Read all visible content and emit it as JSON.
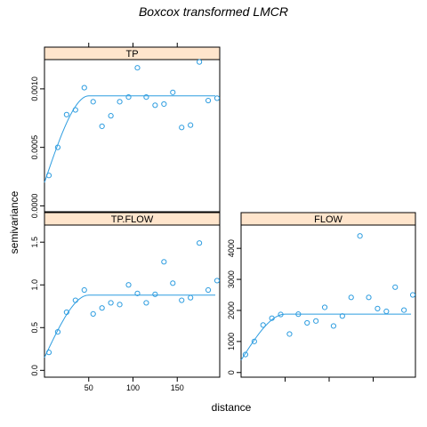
{
  "chart_data": {
    "type": "scatter",
    "title": "Boxcox transformed LMCR",
    "xlabel": "distance",
    "ylabel": "semivariance",
    "strip_color": "#ffe5cc",
    "point_color": "#2e9de0",
    "line_color": "#2e9de0",
    "panels": [
      {
        "name": "TP",
        "xlim": [
          0,
          198
        ],
        "ylim": [
          -5e-05,
          0.00125
        ],
        "y_ticks": [
          0.0,
          0.0005,
          0.001
        ],
        "y_tick_labels": [
          "0.0000",
          "0.0005",
          "0.0010"
        ],
        "y_ticks_side": "left",
        "x_ticks": [
          50,
          100,
          150
        ],
        "x_tick_labels": [],
        "x_ticks_side": "top",
        "points": {
          "x": [
            5,
            15,
            25,
            35,
            45,
            55,
            65,
            75,
            85,
            95,
            105,
            115,
            125,
            135,
            145,
            155,
            165,
            175,
            185,
            195
          ],
          "y": [
            0.00026,
            0.0005,
            0.00078,
            0.00082,
            0.00101,
            0.00089,
            0.00068,
            0.00077,
            0.00089,
            0.00093,
            0.00118,
            0.00093,
            0.00086,
            0.00087,
            0.00097,
            0.00067,
            0.00069,
            0.00123,
            0.0009,
            0.00092
          ]
        },
        "curve": {
          "nugget": 0.0002,
          "sill": 0.00094,
          "range": 50
        }
      },
      {
        "name": "TP.FLOW",
        "xlim": [
          0,
          198
        ],
        "ylim": [
          -0.08,
          1.7
        ],
        "y_ticks": [
          0.0,
          0.5,
          1.0,
          1.5
        ],
        "y_tick_labels": [
          "0.0",
          "0.5",
          "1.0",
          "1.5"
        ],
        "y_ticks_side": "left",
        "x_ticks": [
          50,
          100,
          150
        ],
        "x_tick_labels": [
          "50",
          "100",
          "150"
        ],
        "x_ticks_side": "bottom",
        "points": {
          "x": [
            5,
            15,
            25,
            35,
            45,
            55,
            65,
            75,
            85,
            95,
            105,
            115,
            125,
            135,
            145,
            155,
            165,
            175,
            185,
            195
          ],
          "y": [
            0.21,
            0.45,
            0.68,
            0.82,
            0.94,
            0.66,
            0.73,
            0.79,
            0.77,
            1.0,
            0.9,
            0.79,
            0.89,
            1.27,
            1.02,
            0.82,
            0.85,
            1.49,
            0.94,
            1.05
          ]
        },
        "curve": {
          "nugget": 0.15,
          "sill": 0.88,
          "range": 50
        }
      },
      {
        "name": "FLOW",
        "xlim": [
          0,
          198
        ],
        "ylim": [
          -150,
          4750
        ],
        "y_ticks": [
          0,
          1000,
          2000,
          3000,
          4000
        ],
        "y_tick_labels": [
          "0",
          "1000",
          "2000",
          "3000",
          "4000"
        ],
        "y_ticks_side": "left",
        "x_ticks": [
          50,
          100,
          150
        ],
        "x_tick_labels": [],
        "x_ticks_side": "bottom",
        "points": {
          "x": [
            5,
            15,
            25,
            35,
            45,
            55,
            65,
            75,
            85,
            95,
            105,
            115,
            125,
            135,
            145,
            155,
            165,
            175,
            185,
            195
          ],
          "y": [
            580,
            1000,
            1530,
            1750,
            1870,
            1240,
            1880,
            1600,
            1660,
            2100,
            1500,
            1820,
            2420,
            4400,
            2420,
            2060,
            1970,
            2750,
            2010,
            2500
          ]
        },
        "curve": {
          "nugget": 400,
          "sill": 1880,
          "range": 50
        }
      }
    ]
  }
}
